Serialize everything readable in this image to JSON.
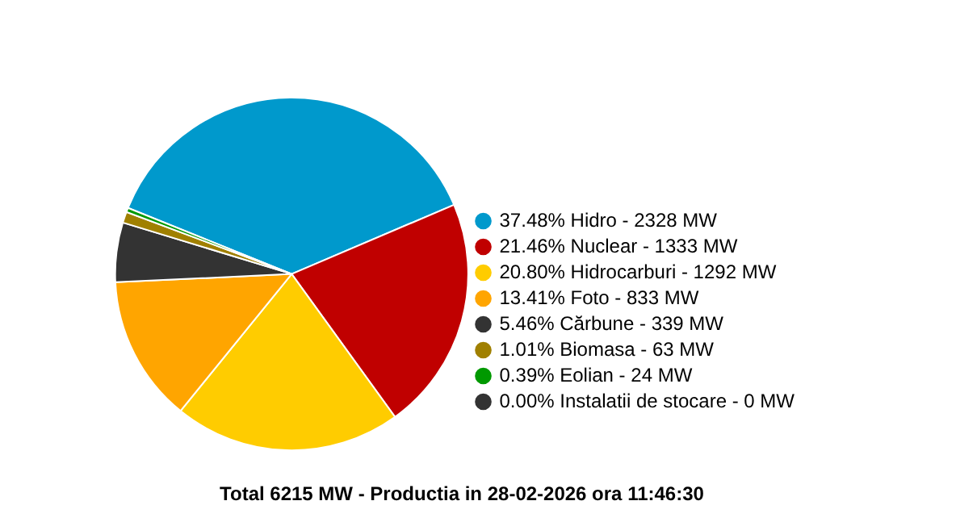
{
  "chart_data": {
    "type": "pie",
    "title": "Total 6215 MW - Productia in 28-02-2026 ora 11:46:30",
    "categories": [
      "37.48% Hidro - 2328 MW",
      "21.46% Nuclear - 1333 MW",
      "20.80% Hidrocarburi - 1292 MW",
      "13.41% Foto - 833 MW",
      "5.46% Cărbune - 339 MW",
      "1.01% Biomasa - 63 MW",
      "0.39% Eolian - 24 MW",
      "0.00% Instalatii de stocare - 0 MW"
    ],
    "values": [
      37.48,
      21.46,
      20.8,
      13.41,
      5.46,
      1.01,
      0.39,
      0.0
    ],
    "colors": [
      "#0099cc",
      "#c00000",
      "#ffcc00",
      "#ffa500",
      "#333333",
      "#a08000",
      "#009900",
      "#333333"
    ],
    "legend": "right"
  }
}
